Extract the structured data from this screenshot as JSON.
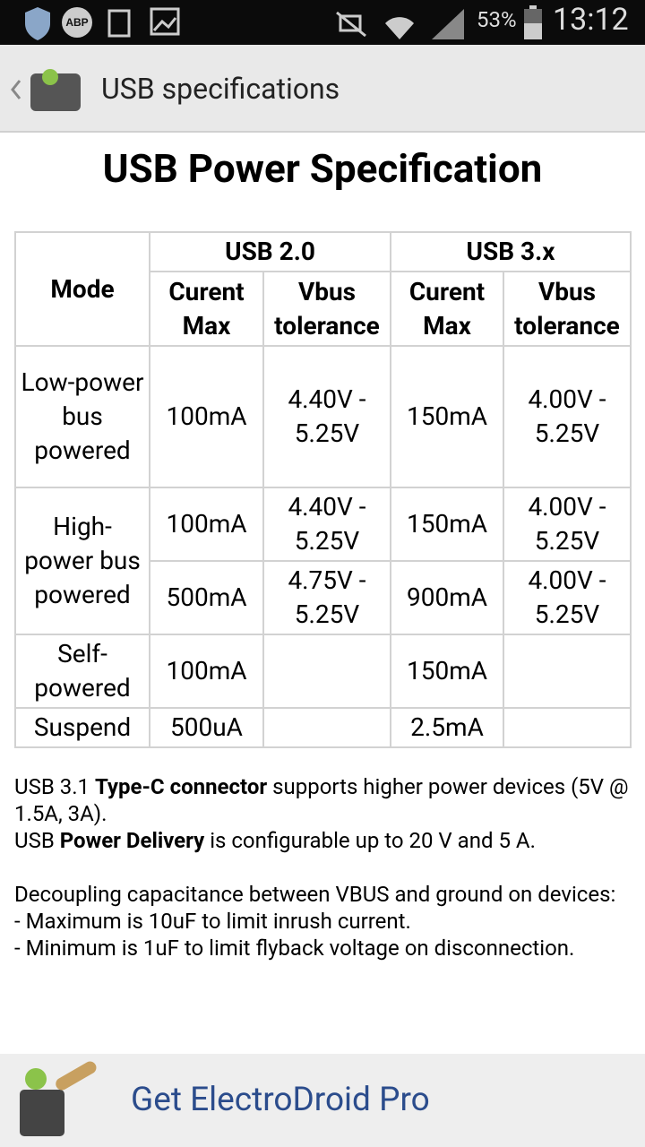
{
  "status_bar": {
    "adblock": "ABP",
    "battery": "53%",
    "time": "13:12"
  },
  "app_bar": {
    "title": "USB specifications"
  },
  "heading": "USB Power Specification",
  "table": {
    "mode": "Mode",
    "groups": [
      "USB 2.0",
      "USB 3.x"
    ],
    "columns": [
      "Curent Max",
      "Vbus tolerance",
      "Curent Max",
      "Vbus tolerance"
    ],
    "rows": [
      [
        "Low-power bus powered",
        "100mA",
        "4.40V - 5.25V",
        "150mA",
        "4.00V - 5.25V"
      ],
      [
        "High-power bus powered",
        "100mA",
        "4.40V - 5.25V",
        "150mA",
        "4.00V - 5.25V"
      ],
      [
        "500mA",
        "4.75V - 5.25V",
        "900mA",
        "4.00V - 5.25V"
      ],
      [
        "Self-powered",
        "100mA",
        "150mA"
      ],
      [
        "Suspend",
        "500uA",
        "2.5mA"
      ]
    ]
  },
  "notes": [
    [
      {
        "text": "USB 3.1 ",
        "bold": false
      },
      {
        "text": "Type-C connector",
        "bold": true
      },
      {
        "text": " supports higher power devices (5V @ 1.5A, 3A).",
        "bold": false
      }
    ],
    [
      {
        "text": "USB ",
        "bold": false
      },
      {
        "text": "Power Delivery",
        "bold": true
      },
      {
        "text": " is configurable up to 20 V and 5 A.",
        "bold": false
      }
    ],
    [],
    [
      {
        "text": "Decoupling capacitance between VBUS and ground on devices:",
        "bold": false
      }
    ],
    [
      {
        "text": "- Maximum is 10uF to limit inrush current.",
        "bold": false
      }
    ],
    [
      {
        "text": "- Minimum is 1uF to limit flyback voltage on disconnection.",
        "bold": false
      }
    ]
  ],
  "banner": {
    "label": "Get ElectroDroid Pro"
  }
}
